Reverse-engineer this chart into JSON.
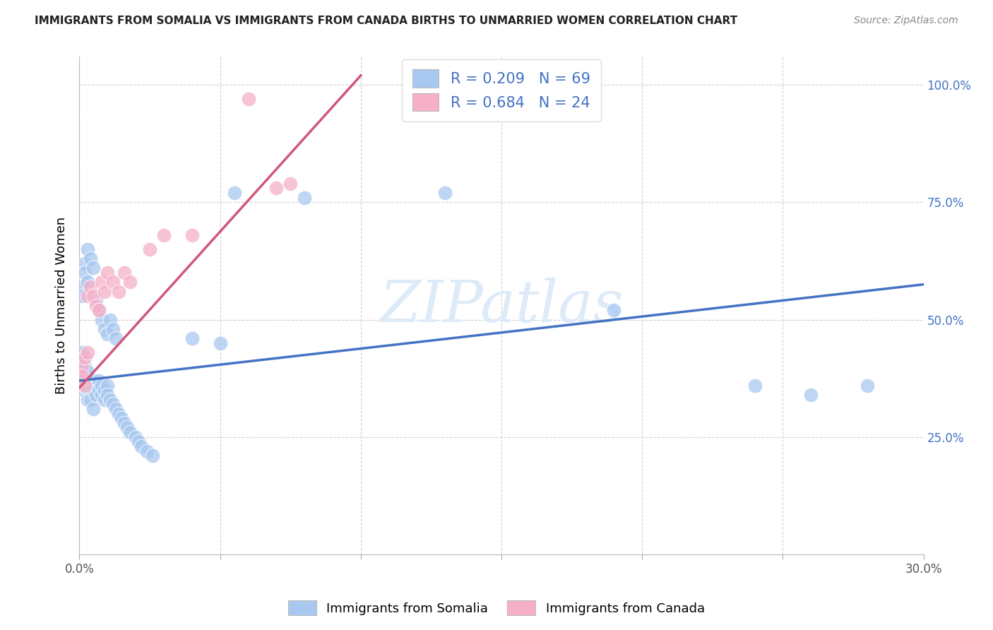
{
  "title": "IMMIGRANTS FROM SOMALIA VS IMMIGRANTS FROM CANADA BIRTHS TO UNMARRIED WOMEN CORRELATION CHART",
  "source": "Source: ZipAtlas.com",
  "ylabel": "Births to Unmarried Women",
  "r1": "0.209",
  "n1": "69",
  "r2": "0.684",
  "n2": "24",
  "blue_color": "#A8C8F0",
  "pink_color": "#F5B0C8",
  "blue_line_color": "#4472C4",
  "pink_line_color": "#D05878",
  "legend1_label": "Immigrants from Somalia",
  "legend2_label": "Immigrants from Canada",
  "text_blue": "#4472C4",
  "watermark_color": "#ddeaf8",
  "xlim": [
    0.0,
    0.3
  ],
  "ylim": [
    0.0,
    1.06
  ],
  "blue_line": [
    0.0,
    0.37,
    0.3,
    0.575
  ],
  "pink_line": [
    0.0,
    0.355,
    0.1,
    1.02
  ],
  "somalia_x": [
    0.0005,
    0.001,
    0.001,
    0.001,
    0.0015,
    0.0015,
    0.002,
    0.002,
    0.002,
    0.0025,
    0.0025,
    0.003,
    0.003,
    0.003,
    0.003,
    0.004,
    0.004,
    0.004,
    0.005,
    0.005,
    0.005,
    0.006,
    0.006,
    0.007,
    0.007,
    0.008,
    0.008,
    0.009,
    0.009,
    0.01,
    0.01,
    0.011,
    0.012,
    0.013,
    0.014,
    0.015,
    0.016,
    0.017,
    0.018,
    0.02,
    0.021,
    0.022,
    0.024,
    0.026,
    0.001,
    0.001,
    0.002,
    0.002,
    0.003,
    0.003,
    0.004,
    0.005,
    0.006,
    0.007,
    0.008,
    0.009,
    0.01,
    0.011,
    0.012,
    0.013,
    0.04,
    0.05,
    0.055,
    0.08,
    0.13,
    0.19,
    0.24,
    0.26,
    0.28
  ],
  "somalia_y": [
    0.37,
    0.39,
    0.41,
    0.43,
    0.37,
    0.35,
    0.38,
    0.4,
    0.36,
    0.38,
    0.36,
    0.37,
    0.39,
    0.35,
    0.33,
    0.37,
    0.35,
    0.33,
    0.37,
    0.35,
    0.31,
    0.36,
    0.34,
    0.37,
    0.35,
    0.36,
    0.34,
    0.35,
    0.33,
    0.36,
    0.34,
    0.33,
    0.32,
    0.31,
    0.3,
    0.29,
    0.28,
    0.27,
    0.26,
    0.25,
    0.24,
    0.23,
    0.22,
    0.21,
    0.57,
    0.55,
    0.62,
    0.6,
    0.58,
    0.65,
    0.63,
    0.61,
    0.54,
    0.52,
    0.5,
    0.48,
    0.47,
    0.5,
    0.48,
    0.46,
    0.46,
    0.45,
    0.77,
    0.76,
    0.77,
    0.52,
    0.36,
    0.34,
    0.36
  ],
  "canada_x": [
    0.0005,
    0.001,
    0.001,
    0.002,
    0.002,
    0.003,
    0.003,
    0.004,
    0.005,
    0.006,
    0.007,
    0.008,
    0.009,
    0.01,
    0.012,
    0.014,
    0.016,
    0.018,
    0.025,
    0.03,
    0.04,
    0.06,
    0.07,
    0.075
  ],
  "canada_y": [
    0.37,
    0.4,
    0.38,
    0.42,
    0.36,
    0.55,
    0.43,
    0.57,
    0.55,
    0.53,
    0.52,
    0.58,
    0.56,
    0.6,
    0.58,
    0.56,
    0.6,
    0.58,
    0.65,
    0.68,
    0.68,
    0.97,
    0.78,
    0.79
  ]
}
